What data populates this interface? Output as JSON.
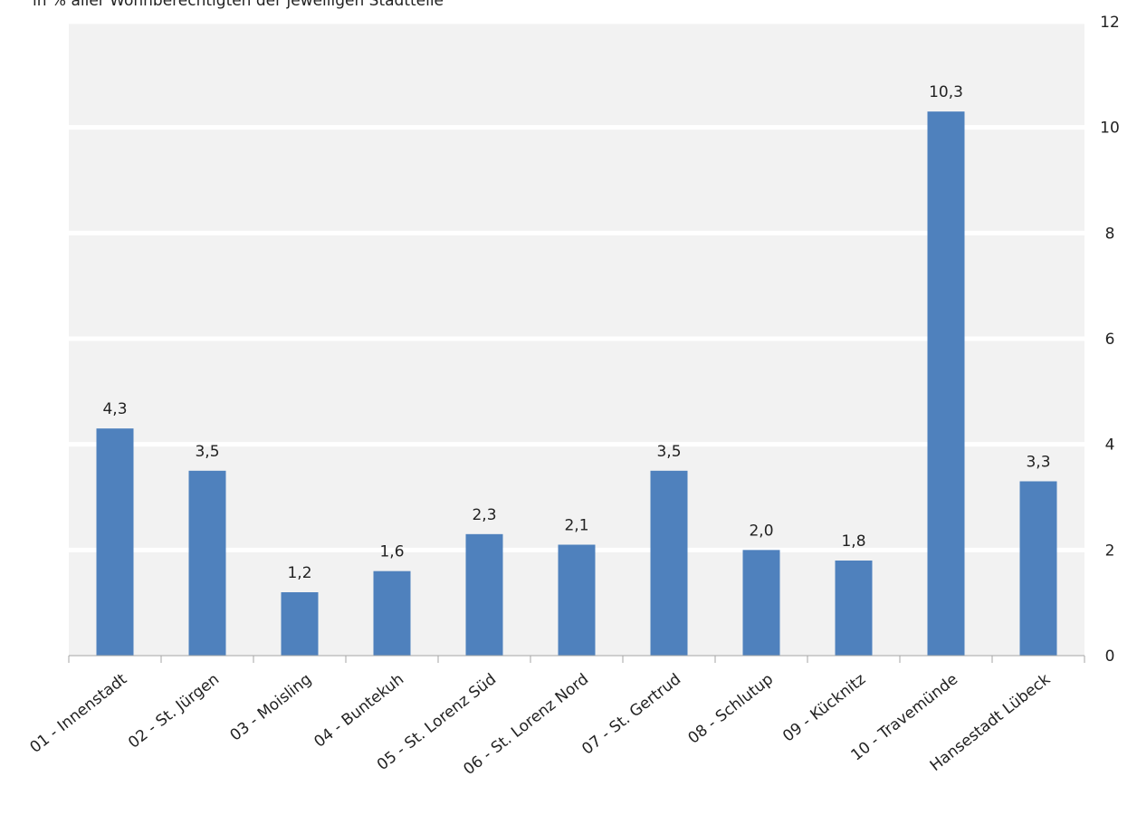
{
  "header": {
    "subtitle": "in % aller Wohnberechtigten der jeweiligen Stadtteile"
  },
  "colors": {
    "bar": "#4F81BD",
    "plot_background": "#F2F2F2",
    "gridline": "#FFFFFF",
    "axis": "#A6A6A6"
  },
  "chart_data": {
    "type": "bar",
    "title": "",
    "subtitle": "in % aller Wohnberechtigten der jeweiligen Stadtteile",
    "xlabel": "",
    "ylabel": "",
    "categories": [
      "01 - Innenstadt",
      "02 - St. Jürgen",
      "03 - Moisling",
      "04 - Buntekuh",
      "05 - St. Lorenz Süd",
      "06 - St. Lorenz Nord",
      "07 - St. Gertrud",
      "08 - Schlutup",
      "09 - Kücknitz",
      "10 - Travemünde",
      "Hansestadt Lübeck"
    ],
    "values": [
      4.3,
      3.5,
      1.2,
      1.6,
      2.3,
      2.1,
      3.5,
      2.0,
      1.8,
      10.3,
      3.3
    ],
    "data_labels": [
      "4,3",
      "3,5",
      "1,2",
      "1,6",
      "2,3",
      "2,1",
      "3,5",
      "2,0",
      "1,8",
      "10,3",
      "3,3"
    ],
    "ylim": [
      0,
      12
    ],
    "y_ticks": [
      0,
      2,
      4,
      6,
      8,
      10,
      12
    ],
    "y_tick_labels": [
      "0",
      "2",
      "4",
      "6",
      "8",
      "10",
      "12"
    ],
    "y_axis_side": "right",
    "grid": true,
    "legend": "none"
  }
}
